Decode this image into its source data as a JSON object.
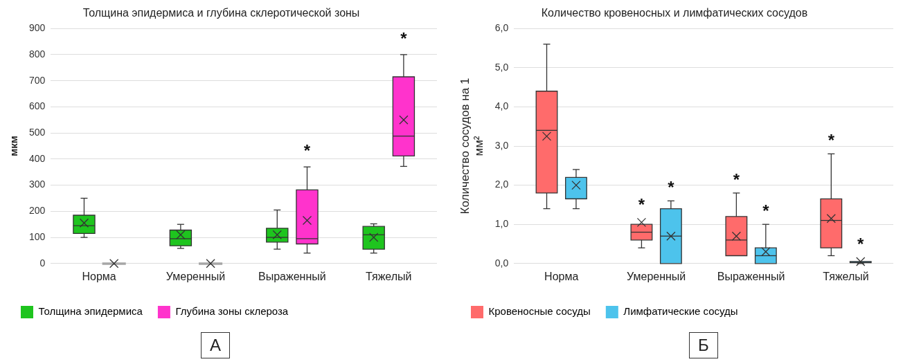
{
  "chart_data": [
    {
      "type": "box",
      "title": "Толщина эпидермиса и глубина склеротической зоны",
      "ylabel": "мкм",
      "categories": [
        "Норма",
        "Умеренный",
        "Выраженный",
        "Тяжелый"
      ],
      "series": [
        {
          "name": "Толщина эпидермиса",
          "color": "#1ec41e",
          "boxes": [
            {
              "low": 100,
              "q1": 115,
              "median": 145,
              "q3": 185,
              "high": 250,
              "mean": 155
            },
            {
              "low": 58,
              "q1": 68,
              "median": 95,
              "q3": 128,
              "high": 150,
              "mean": 110
            },
            {
              "low": 55,
              "q1": 82,
              "median": 100,
              "q3": 135,
              "high": 205,
              "mean": 110
            },
            {
              "low": 40,
              "q1": 55,
              "median": 110,
              "q3": 142,
              "high": 152,
              "mean": 100
            }
          ]
        },
        {
          "name": "Глубина зоны склероза",
          "color": "#ff33cc",
          "colors": [
            "#a6a6a6",
            "#a6a6a6",
            "#ff33cc",
            "#ff33cc"
          ],
          "boxes": [
            {
              "low": 0,
              "q1": 0,
              "median": 0,
              "q3": 0,
              "high": 0,
              "mean": 0
            },
            {
              "low": 0,
              "q1": 0,
              "median": 0,
              "q3": 0,
              "high": 0,
              "mean": 0
            },
            {
              "low": 40,
              "q1": 75,
              "median": 95,
              "q3": 282,
              "high": 370,
              "mean": 165
            },
            {
              "low": 372,
              "q1": 412,
              "median": 488,
              "q3": 715,
              "high": 800,
              "mean": 550
            }
          ]
        }
      ],
      "ylim": [
        0,
        900
      ],
      "yticks": [
        0,
        100,
        200,
        300,
        400,
        500,
        600,
        700,
        800,
        900
      ],
      "grid": "y",
      "legend": "bottom",
      "annotations": [
        "*",
        "*",
        "А"
      ]
    },
    {
      "type": "box",
      "title": "Количество кровеносных и лимфатических сосудов",
      "ylabel": "Количество сосудов на 1 мм²",
      "categories": [
        "Норма",
        "Умеренный",
        "Выраженный",
        "Тяжелый"
      ],
      "series": [
        {
          "name": "Кровеносные сосуды",
          "color": "#ff6b6b",
          "boxes": [
            {
              "low": 1.4,
              "q1": 1.8,
              "median": 3.4,
              "q3": 4.4,
              "high": 5.6,
              "mean": 3.25
            },
            {
              "low": 0.4,
              "q1": 0.6,
              "median": 0.8,
              "q3": 1.0,
              "high": 1.0,
              "mean": 1.05
            },
            {
              "low": 0.2,
              "q1": 0.2,
              "median": 0.6,
              "q3": 1.2,
              "high": 1.8,
              "mean": 0.7
            },
            {
              "low": 0.2,
              "q1": 0.4,
              "median": 1.1,
              "q3": 1.65,
              "high": 2.8,
              "mean": 1.15
            }
          ]
        },
        {
          "name": "Лимфатические сосуды",
          "color": "#4dc3ec",
          "boxes": [
            {
              "low": 1.4,
              "q1": 1.65,
              "median": 1.65,
              "q3": 2.2,
              "high": 2.4,
              "mean": 2.0
            },
            {
              "low": 0,
              "q1": 0,
              "median": 0.7,
              "q3": 1.4,
              "high": 1.6,
              "mean": 0.7
            },
            {
              "low": 0,
              "q1": 0,
              "median": 0.2,
              "q3": 0.4,
              "high": 1.0,
              "mean": 0.3
            },
            {
              "low": 0,
              "q1": 0.02,
              "median": 0.03,
              "q3": 0.05,
              "high": 0.05,
              "mean": 0.05
            }
          ]
        }
      ],
      "ylim": [
        0,
        6
      ],
      "yticks": [
        {
          "value": 0,
          "label": "0,0"
        },
        {
          "value": 1,
          "label": "1,0"
        },
        {
          "value": 2,
          "label": "2,0"
        },
        {
          "value": 3,
          "label": "3,0"
        },
        {
          "value": 4,
          "label": "4,0"
        },
        {
          "value": 5,
          "label": "5,0"
        },
        {
          "value": 6,
          "label": "6,0"
        }
      ],
      "grid": "y",
      "legend": "bottom",
      "annotations": [
        "*",
        "*",
        "*",
        "*",
        "*",
        "*",
        "Б"
      ]
    }
  ]
}
